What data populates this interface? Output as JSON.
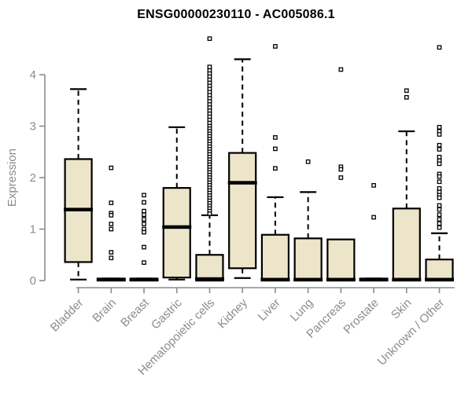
{
  "chart_data": {
    "type": "boxplot",
    "title": "ENSG00000230110 - AC005086.1",
    "ylabel": "Expression",
    "xlabel": "",
    "ylim": [
      0,
      4.8
    ],
    "yticks": [
      0,
      1,
      2,
      3,
      4
    ],
    "grid": false,
    "legend": "none",
    "categories": [
      "Bladder",
      "Brain",
      "Breast",
      "Gastric",
      "Hematopoietic cells",
      "Kidney",
      "Liver",
      "Lung",
      "Pancreas",
      "Prostate",
      "Skin",
      "Unknown / Other"
    ],
    "series": [
      {
        "name": "Bladder",
        "whisker_low": 0.02,
        "q1": 0.36,
        "median": 1.38,
        "q3": 2.36,
        "whisker_high": 3.72,
        "outliers": []
      },
      {
        "name": "Brain",
        "whisker_low": 0,
        "q1": 0,
        "median": 0.02,
        "q3": 0.04,
        "whisker_high": 0.04,
        "outliers": [
          2.19,
          1.51,
          1.31,
          1.27,
          1.1,
          1.0,
          0.55,
          0.44
        ]
      },
      {
        "name": "Breast",
        "whisker_low": 0,
        "q1": 0,
        "median": 0.02,
        "q3": 0.04,
        "whisker_high": 0.04,
        "outliers": [
          1.66,
          1.52,
          1.35,
          1.28,
          1.19,
          1.1,
          1.0,
          0.94,
          0.65,
          0.35
        ]
      },
      {
        "name": "Gastric",
        "whisker_low": 0.02,
        "q1": 0.06,
        "median": 1.04,
        "q3": 1.8,
        "whisker_high": 2.98,
        "outliers": []
      },
      {
        "name": "Hematopoietic cells",
        "whisker_low": 0,
        "q1": 0,
        "median": 0.03,
        "q3": 0.5,
        "whisker_high": 1.27,
        "outliers": [
          4.7,
          4.15,
          4.08,
          4.02,
          3.96,
          3.9,
          3.84,
          3.78,
          3.72,
          3.66,
          3.6,
          3.54,
          3.48,
          3.42,
          3.36,
          3.3,
          3.24,
          3.18,
          3.12,
          3.06,
          3.0,
          2.95,
          2.9,
          2.85,
          2.8,
          2.75,
          2.7,
          2.65,
          2.6,
          2.55,
          2.5,
          2.45,
          2.4,
          2.35,
          2.3,
          2.25,
          2.2,
          2.15,
          2.1,
          2.05,
          2.0,
          1.95,
          1.9,
          1.85,
          1.8,
          1.75,
          1.7,
          1.65,
          1.6,
          1.55,
          1.5,
          1.45,
          1.4,
          1.35,
          1.3
        ]
      },
      {
        "name": "Kidney",
        "whisker_low": 0.05,
        "q1": 0.24,
        "median": 1.9,
        "q3": 2.48,
        "whisker_high": 4.3,
        "outliers": []
      },
      {
        "name": "Liver",
        "whisker_low": 0,
        "q1": 0,
        "median": 0.02,
        "q3": 0.89,
        "whisker_high": 1.62,
        "outliers": [
          4.55,
          2.78,
          2.56,
          2.18
        ]
      },
      {
        "name": "Lung",
        "whisker_low": 0,
        "q1": 0,
        "median": 0.02,
        "q3": 0.82,
        "whisker_high": 1.72,
        "outliers": [
          2.31
        ]
      },
      {
        "name": "Pancreas",
        "whisker_low": 0,
        "q1": 0,
        "median": 0.02,
        "q3": 0.8,
        "whisker_high": 0.8,
        "outliers": [
          4.1,
          2.21,
          2.16,
          2.0
        ]
      },
      {
        "name": "Prostate",
        "whisker_low": 0,
        "q1": 0,
        "median": 0.02,
        "q3": 0.04,
        "whisker_high": 0.04,
        "outliers": [
          1.85,
          1.23
        ]
      },
      {
        "name": "Skin",
        "whisker_low": 0,
        "q1": 0,
        "median": 0.02,
        "q3": 1.4,
        "whisker_high": 2.9,
        "outliers": [
          3.69,
          3.56
        ]
      },
      {
        "name": "Unknown / Other",
        "whisker_low": 0,
        "q1": 0,
        "median": 0.02,
        "q3": 0.41,
        "whisker_high": 0.92,
        "outliers": [
          4.53,
          2.98,
          2.9,
          2.84,
          2.63,
          2.55,
          2.4,
          2.33,
          2.27,
          2.07,
          2.02,
          1.92,
          1.79,
          1.72,
          1.66,
          1.61,
          1.46,
          1.38,
          1.28,
          1.19,
          1.11,
          1.03
        ]
      }
    ],
    "style": {
      "box_fill": "#ece5c9",
      "box_stroke": "#000000",
      "median_stroke": "#000000",
      "whisker_stroke": "#000000",
      "outlier_stroke": "#000000",
      "outlier_fill": "#ffffff",
      "axis_color": "#8c8c8c",
      "tick_label_color": "#8c8c8c",
      "title_color": "#000000",
      "background": "#ffffff"
    }
  }
}
